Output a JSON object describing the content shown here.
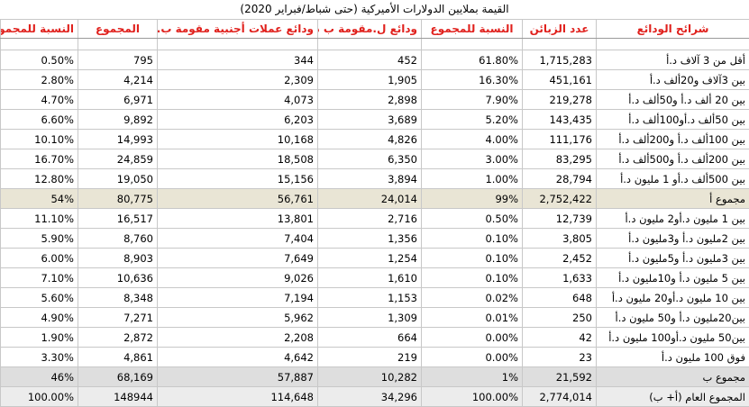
{
  "caption": "القيمة بملايين الدولارات الأميركية (حتى شباط/فبراير 2020)",
  "headers": [
    "النسبة للمجموع",
    "المجموع",
    "ودائع عملات أجنبية مقومة ب.د.أ",
    "ودائع ل.مقومة ب د.أ",
    "النسبة للمجموع",
    "عدد الزبائن",
    "شرائح الودائع"
  ],
  "rows": [
    {
      "type": "normal",
      "c": [
        "0.50%",
        "795",
        "344",
        "452",
        "61.80%",
        "1,715,283",
        "أقل من 3 آلاف د.أ"
      ]
    },
    {
      "type": "normal",
      "c": [
        "2.80%",
        "4,214",
        "2,309",
        "1,905",
        "16.30%",
        "451,161",
        "بين 3آلاف و20ألف د.أ"
      ]
    },
    {
      "type": "normal",
      "c": [
        "4.70%",
        "6,971",
        "4,073",
        "2,898",
        "7.90%",
        "219,278",
        "بين 20 ألف د.أ و50ألف د.أ"
      ]
    },
    {
      "type": "normal",
      "c": [
        "6.60%",
        "9,892",
        "6,203",
        "3,689",
        "5.20%",
        "143,435",
        "بين 50ألف د.أو100ألف د.أ"
      ]
    },
    {
      "type": "normal",
      "c": [
        "10.10%",
        "14,993",
        "10,168",
        "4,826",
        "4.00%",
        "111,176",
        "بين 100ألف د.أ و200ألف د.أ"
      ]
    },
    {
      "type": "normal",
      "c": [
        "16.70%",
        "24,859",
        "18,508",
        "6,350",
        "3.00%",
        "83,295",
        "بين 200ألف د.أ و500ألف د.أ"
      ]
    },
    {
      "type": "normal",
      "c": [
        "12.80%",
        "19,050",
        "15,156",
        "3,894",
        "1.00%",
        "28,794",
        "بين 500ألف د.أو 1 مليون د.أ"
      ]
    },
    {
      "type": "subtotal",
      "c": [
        "54%",
        "80,775",
        "56,761",
        "24,014",
        "99%",
        "2,752,422",
        "مجموع أ"
      ]
    },
    {
      "type": "normal",
      "c": [
        "11.10%",
        "16,517",
        "13,801",
        "2,716",
        "0.50%",
        "12,739",
        "بين 1 مليون د.أو2 مليون د.أ"
      ]
    },
    {
      "type": "normal",
      "c": [
        "5.90%",
        "8,760",
        "7,404",
        "1,356",
        "0.10%",
        "3,805",
        "بين 2مليون د.أ و3مليون د.أ"
      ]
    },
    {
      "type": "normal",
      "c": [
        "6.00%",
        "8,903",
        "7,649",
        "1,254",
        "0.10%",
        "2,452",
        "بين 3مليون د.أ و5مليون د.أ"
      ]
    },
    {
      "type": "normal",
      "c": [
        "7.10%",
        "10,636",
        "9,026",
        "1,610",
        "0.10%",
        "1,633",
        "بين 5 مليون د.أ و10مليون د.أ"
      ]
    },
    {
      "type": "normal",
      "c": [
        "5.60%",
        "8,348",
        "7,194",
        "1,153",
        "0.02%",
        "648",
        "بين 10 مليون د.أو20 مليون د.أ"
      ]
    },
    {
      "type": "normal",
      "c": [
        "4.90%",
        "7,271",
        "5,962",
        "1,309",
        "0.01%",
        "250",
        "بين20مليون د.أ و50 مليون د.أ"
      ]
    },
    {
      "type": "normal",
      "c": [
        "1.90%",
        "2,872",
        "2,208",
        "664",
        "0.00%",
        "42",
        "بين50 مليون د.أو100 مليون د.أ"
      ]
    },
    {
      "type": "normal",
      "c": [
        "3.30%",
        "4,861",
        "4,642",
        "219",
        "0.00%",
        "23",
        "فوق 100 مليون د.أ"
      ]
    },
    {
      "type": "subtotal2",
      "c": [
        "46%",
        "68,169",
        "57,887",
        "10,282",
        "1%",
        "21,592",
        "مجموع ب"
      ]
    },
    {
      "type": "grand",
      "c": [
        "100.00%",
        "148944",
        "114,648",
        "34,296",
        "100.00%",
        "2,774,014",
        "المجموع العام (أ+ ب)"
      ]
    }
  ]
}
